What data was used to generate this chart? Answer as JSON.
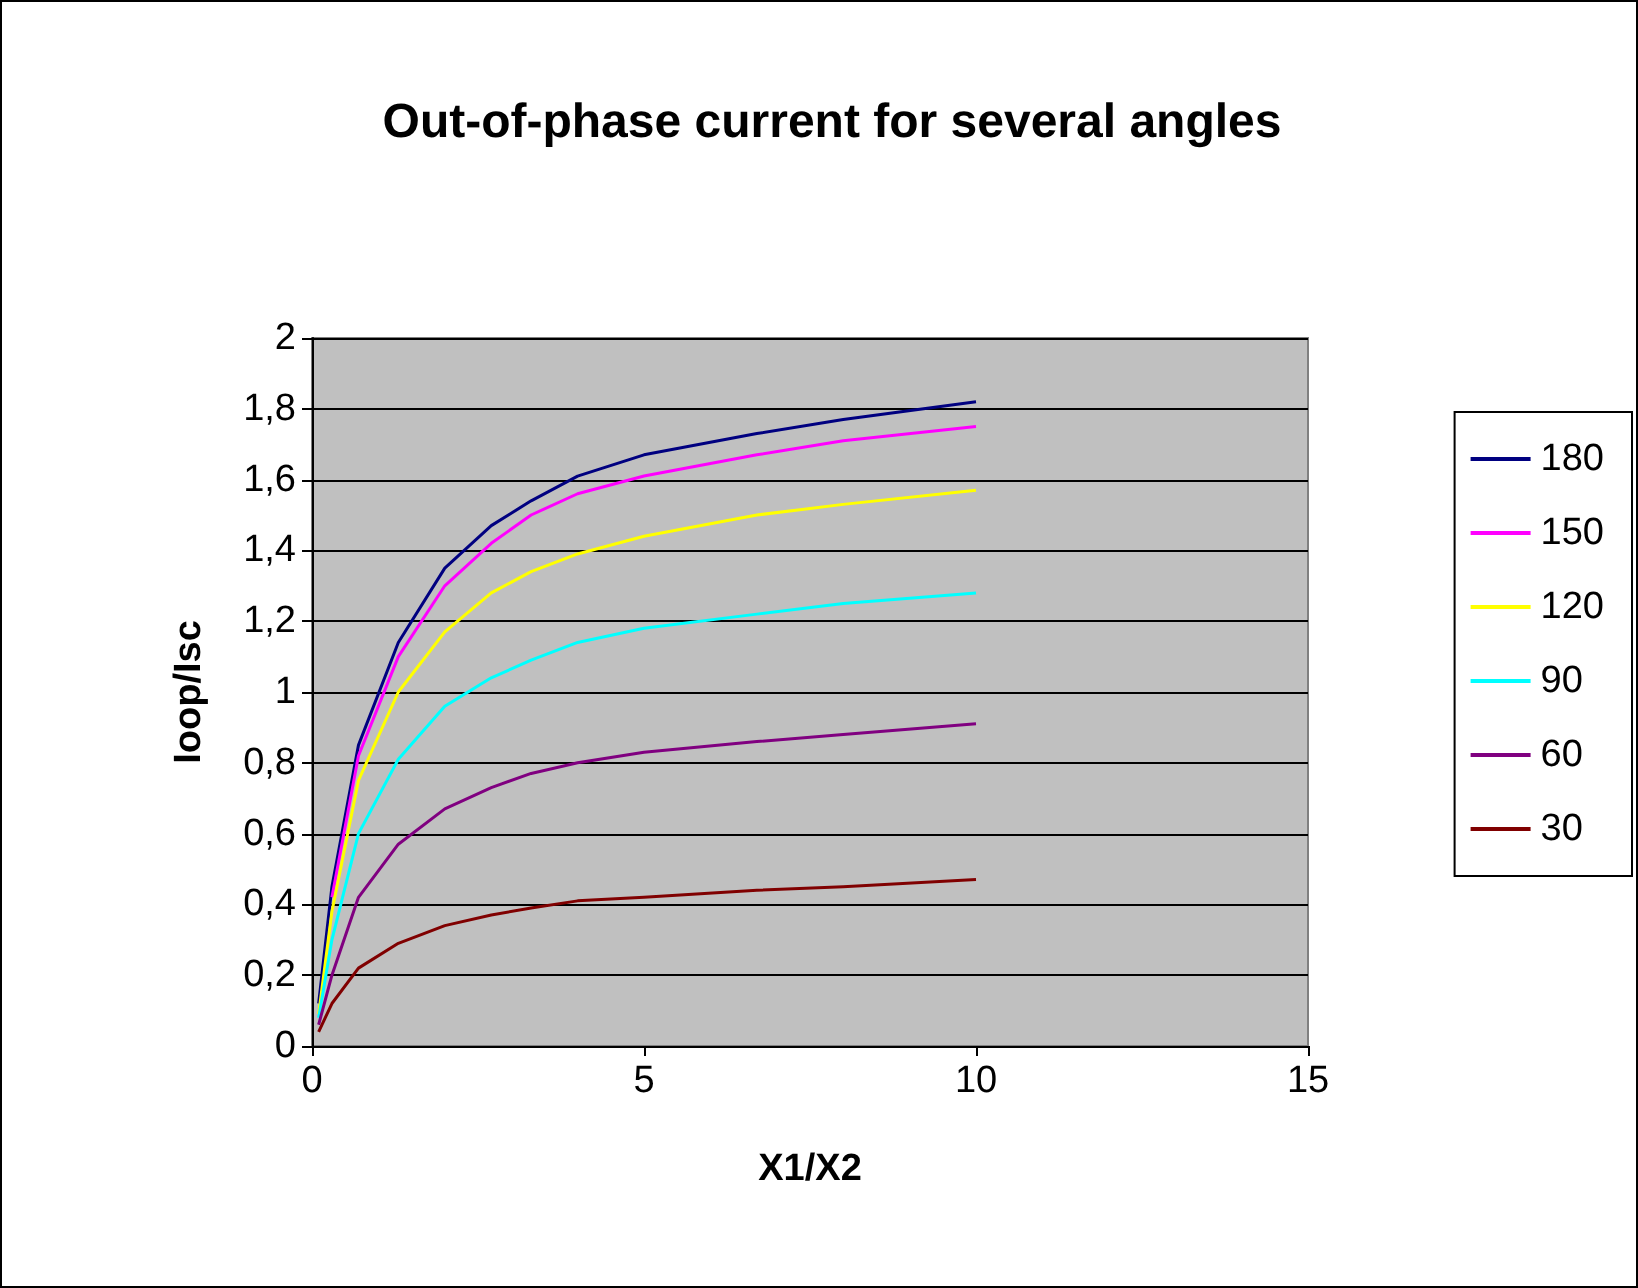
{
  "chart_data": {
    "type": "line",
    "title": "Out-of-phase current for several angles",
    "xlabel": "X1/X2",
    "ylabel": "Ioop/Isc",
    "x": [
      0.1,
      0.3,
      0.7,
      1.3,
      2,
      2.7,
      3.3,
      4,
      5,
      6.7,
      8,
      10
    ],
    "series": [
      {
        "name": "180",
        "color": "#000080",
        "values": [
          0.12,
          0.45,
          0.85,
          1.14,
          1.35,
          1.47,
          1.54,
          1.61,
          1.67,
          1.73,
          1.77,
          1.82
        ]
      },
      {
        "name": "150",
        "color": "#ff00ff",
        "values": [
          null,
          0.42,
          0.82,
          1.1,
          1.3,
          1.42,
          1.5,
          1.56,
          1.61,
          1.67,
          1.71,
          1.75
        ]
      },
      {
        "name": "120",
        "color": "#ffff00",
        "values": [
          0.09,
          0.38,
          0.75,
          1.0,
          1.17,
          1.28,
          1.34,
          1.39,
          1.44,
          1.5,
          1.53,
          1.57
        ]
      },
      {
        "name": "90",
        "color": "#00ffff",
        "values": [
          0.08,
          0.3,
          0.6,
          0.81,
          0.96,
          1.04,
          1.09,
          1.14,
          1.18,
          1.22,
          1.25,
          1.28
        ]
      },
      {
        "name": "60",
        "color": "#800080",
        "values": [
          0.06,
          0.2,
          0.42,
          0.57,
          0.67,
          0.73,
          0.77,
          0.8,
          0.83,
          0.86,
          0.88,
          0.91
        ]
      },
      {
        "name": "30",
        "color": "#800000",
        "values": [
          0.04,
          0.12,
          0.22,
          0.29,
          0.34,
          0.37,
          0.39,
          0.41,
          0.42,
          0.44,
          0.45,
          0.47
        ]
      }
    ],
    "xlim": [
      0,
      15
    ],
    "xticks": [
      0,
      5,
      10,
      15
    ],
    "ylim": [
      0,
      2
    ],
    "yticks": [
      0,
      {
        "value": 0.2,
        "label": "0,2"
      },
      {
        "value": 0.4,
        "label": "0,4"
      },
      {
        "value": 0.6,
        "label": "0,6"
      },
      {
        "value": 0.8,
        "label": "0,8"
      },
      1,
      {
        "value": 1.2,
        "label": "1,2"
      },
      {
        "value": 1.4,
        "label": "1,4"
      },
      {
        "value": 1.6,
        "label": "1,6"
      },
      {
        "value": 1.8,
        "label": "1,8"
      },
      2
    ],
    "grid": "y",
    "legend": "right",
    "marker": "none",
    "line_style": "solid"
  }
}
